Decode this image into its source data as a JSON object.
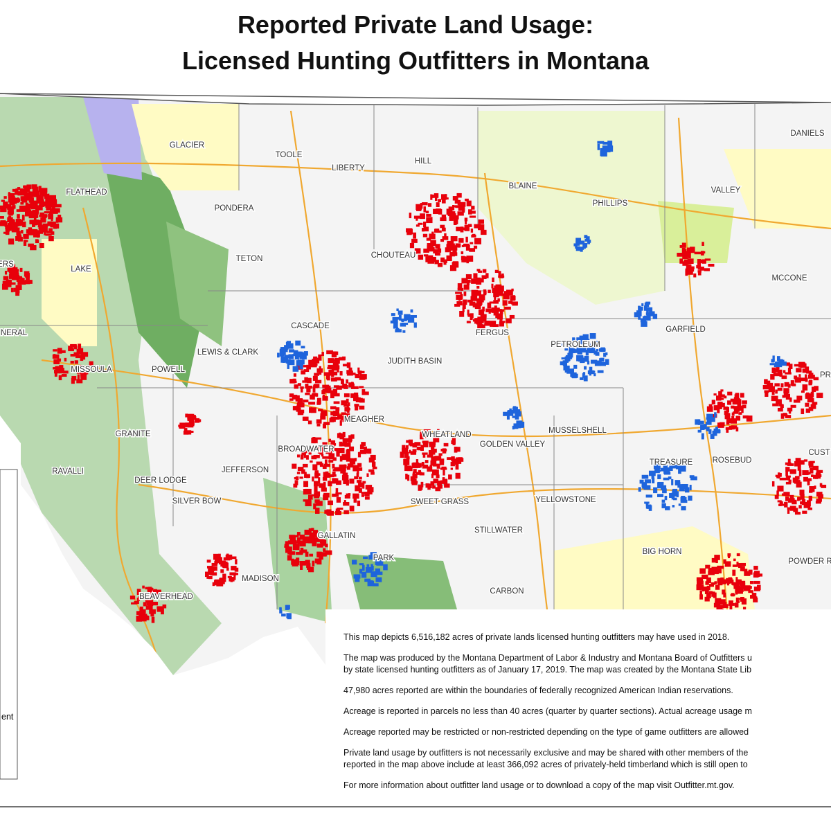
{
  "title": [
    "Reported Private Land Usage:",
    "Licensed Hunting Outfitters in Montana"
  ],
  "counties": [
    "GLACIER",
    "TOOLE",
    "LIBERTY",
    "HILL",
    "DANIELS",
    "BLAINE",
    "VALLEY",
    "FLATHEAD",
    "PHILLIPS",
    "PONDERA",
    "CHOUTEAU",
    "TETON",
    "LAKE",
    "MCCONE",
    "ERS",
    "CASCADE",
    "FERGUS",
    "GARFIELD",
    "NERAL",
    "PETROLEUM",
    "LEWIS & CLARK",
    "JUDITH BASIN",
    "MISSOULA",
    "POWELL",
    "PR",
    "MEAGHER",
    "MUSSELSHELL",
    "GRANITE",
    "WHEATLAND",
    "GOLDEN VALLEY",
    "BROADWATER",
    "CUST",
    "TREASURE",
    "ROSEBUD",
    "RAVALLI",
    "JEFFERSON",
    "DEER LODGE",
    "SILVER BOW",
    "SWEET GRASS",
    "YELLOWSTONE",
    "GALLATIN",
    "STILLWATER",
    "BIG HORN",
    "POWDER R",
    "PARK",
    "MADISON",
    "CARBON",
    "BEAVERHEAD"
  ],
  "legend_text": "ent",
  "notes": [
    [
      "This map depicts 6,516,182 acres of private lands licensed hunting outfitters may have used in 2018."
    ],
    [
      "The map was produced by the Montana Department of Labor & Industry and Montana Board of Outfitters u",
      "by state licensed hunting outfitters as of January 17, 2019. The map was created by the Montana State Lib"
    ],
    [
      "47,980 acres reported are within the boundaries of federally recognized American Indian reservations."
    ],
    [
      "Acreage is reported in parcels no less than 40 acres (quarter by quarter sections). Actual acreage usage m"
    ],
    [
      "Acreage reported may be restricted or non-restricted depending on the type of game outfitters are allowed"
    ],
    [
      "Private land usage by outfitters is not necessarily exclusive and may be shared with other members of the",
      "reported in the map above include at least 366,092 acres of privately-held timberland which is still open to"
    ],
    [
      "For more information about outfitter land usage or to download a copy of the map visit Outfitter.mt.gov."
    ]
  ]
}
